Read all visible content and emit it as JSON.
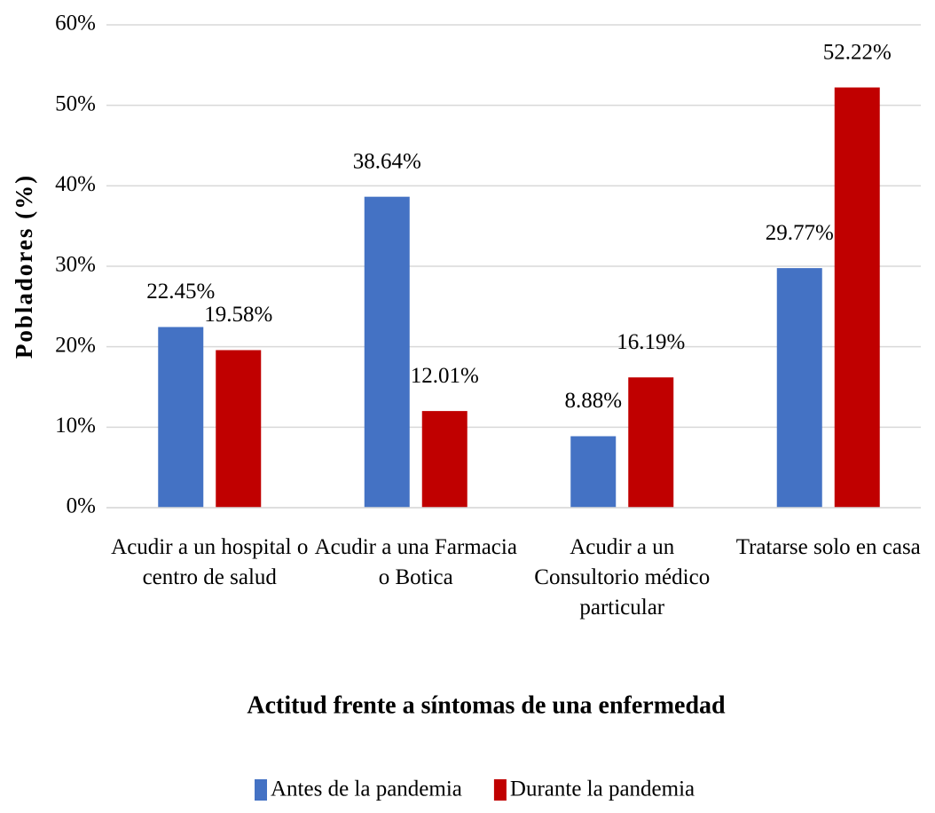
{
  "chart_data": {
    "type": "bar",
    "x_label": "Actitud frente a síntomas de una enfermedad",
    "y_label": "Pobladores (%)",
    "categories": [
      "Acudir a un hospital o centro de salud",
      "Acudir a una Farmacia o Botica",
      "Acudir a un Consultorio médico particular",
      "Tratarse solo en casa"
    ],
    "series": [
      {
        "name": "Antes de la pandemia",
        "color": "#4472c4",
        "values": [
          22.45,
          38.64,
          8.88,
          29.77
        ],
        "value_labels": [
          "22.45%",
          "38.64%",
          "8.88%",
          "29.77%"
        ]
      },
      {
        "name": "Durante la pandemia",
        "color": "#c00000",
        "values": [
          19.58,
          12.01,
          16.19,
          52.22
        ],
        "value_labels": [
          "19.58%",
          "12.01%",
          "16.19%",
          "52.22%"
        ]
      }
    ],
    "ylim": [
      0,
      60
    ],
    "yticks": [
      {
        "value": 0,
        "label": "0%"
      },
      {
        "value": 10,
        "label": "10%"
      },
      {
        "value": 20,
        "label": "20%"
      },
      {
        "value": 30,
        "label": "30%"
      },
      {
        "value": 40,
        "label": "40%"
      },
      {
        "value": 50,
        "label": "50%"
      },
      {
        "value": 60,
        "label": "60%"
      }
    ],
    "grid": true,
    "legend": "bottom"
  }
}
